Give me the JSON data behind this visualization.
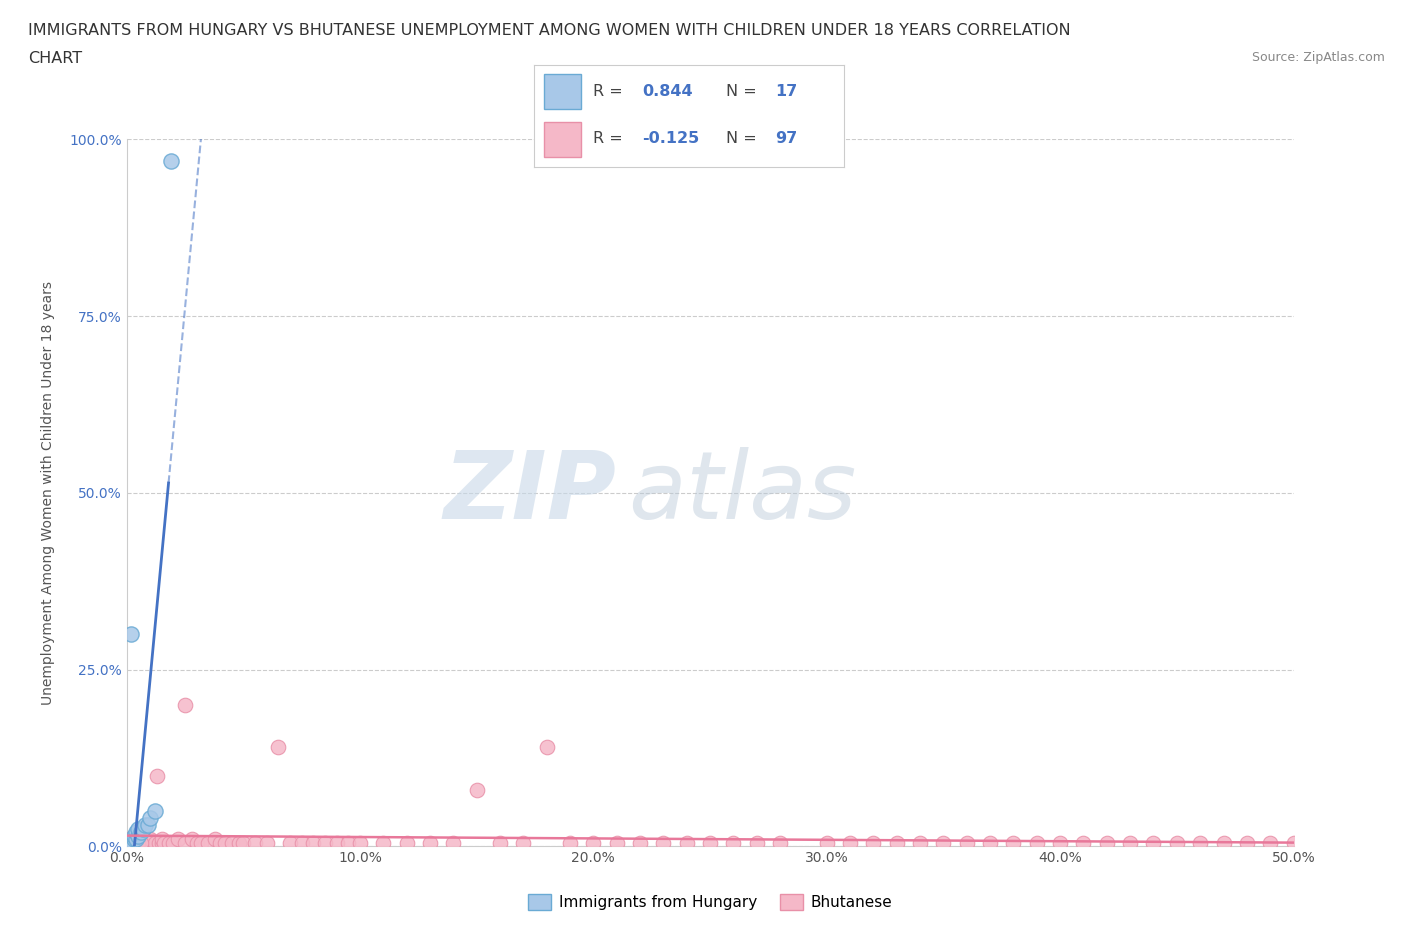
{
  "title_line1": "IMMIGRANTS FROM HUNGARY VS BHUTANESE UNEMPLOYMENT AMONG WOMEN WITH CHILDREN UNDER 18 YEARS CORRELATION",
  "title_line2": "CHART",
  "source": "Source: ZipAtlas.com",
  "ylabel": "Unemployment Among Women with Children Under 18 years",
  "xlabel": "",
  "xlim": [
    0,
    0.5
  ],
  "ylim": [
    0,
    1.0
  ],
  "xticks": [
    0.0,
    0.1,
    0.2,
    0.3,
    0.4,
    0.5
  ],
  "xtick_labels": [
    "0.0%",
    "10.0%",
    "20.0%",
    "30.0%",
    "40.0%",
    "50.0%"
  ],
  "yticks": [
    0.0,
    0.25,
    0.5,
    0.75,
    1.0
  ],
  "ytick_labels": [
    "0.0%",
    "25.0%",
    "50.0%",
    "75.0%",
    "100.0%"
  ],
  "hungary_color": "#a8c8e8",
  "hungary_edge_color": "#6aaad4",
  "bhutanese_color": "#f5b8c8",
  "bhutanese_edge_color": "#e890a8",
  "hungary_R": 0.844,
  "hungary_N": 17,
  "bhutanese_R": -0.125,
  "bhutanese_N": 97,
  "legend_hungary_label": "Immigrants from Hungary",
  "legend_bhutanese_label": "Bhutanese",
  "regression_line_hungary_color": "#4472c4",
  "regression_line_bhutanese_color": "#e8789a",
  "watermark_zip": "ZIP",
  "watermark_atlas": "atlas",
  "background_color": "#ffffff",
  "grid_color": "#cccccc",
  "hungary_x": [
    0.001,
    0.002,
    0.002,
    0.003,
    0.003,
    0.004,
    0.004,
    0.005,
    0.005,
    0.006,
    0.007,
    0.008,
    0.009,
    0.01,
    0.012,
    0.002,
    0.019
  ],
  "hungary_y": [
    0.005,
    0.005,
    0.008,
    0.01,
    0.015,
    0.01,
    0.02,
    0.015,
    0.025,
    0.02,
    0.025,
    0.03,
    0.03,
    0.04,
    0.05,
    0.3,
    0.97
  ],
  "bhutanese_x": [
    0.001,
    0.001,
    0.002,
    0.002,
    0.003,
    0.003,
    0.003,
    0.004,
    0.004,
    0.005,
    0.005,
    0.006,
    0.006,
    0.007,
    0.007,
    0.008,
    0.008,
    0.009,
    0.009,
    0.01,
    0.01,
    0.012,
    0.013,
    0.014,
    0.015,
    0.015,
    0.016,
    0.018,
    0.02,
    0.022,
    0.025,
    0.025,
    0.028,
    0.03,
    0.032,
    0.035,
    0.038,
    0.04,
    0.042,
    0.045,
    0.048,
    0.05,
    0.055,
    0.06,
    0.065,
    0.07,
    0.075,
    0.08,
    0.085,
    0.09,
    0.095,
    0.1,
    0.11,
    0.12,
    0.13,
    0.14,
    0.15,
    0.16,
    0.17,
    0.18,
    0.19,
    0.2,
    0.21,
    0.22,
    0.23,
    0.24,
    0.25,
    0.26,
    0.27,
    0.28,
    0.3,
    0.31,
    0.32,
    0.33,
    0.34,
    0.35,
    0.36,
    0.37,
    0.38,
    0.39,
    0.4,
    0.41,
    0.42,
    0.43,
    0.44,
    0.45,
    0.46,
    0.47,
    0.48,
    0.49,
    0.5,
    0.001,
    0.002,
    0.003,
    0.004,
    0.005,
    0.006
  ],
  "bhutanese_y": [
    0.005,
    0.01,
    0.005,
    0.01,
    0.005,
    0.01,
    0.015,
    0.005,
    0.01,
    0.005,
    0.01,
    0.005,
    0.01,
    0.005,
    0.01,
    0.005,
    0.01,
    0.005,
    0.01,
    0.005,
    0.01,
    0.005,
    0.1,
    0.005,
    0.005,
    0.01,
    0.005,
    0.005,
    0.005,
    0.01,
    0.005,
    0.2,
    0.01,
    0.005,
    0.005,
    0.005,
    0.01,
    0.005,
    0.005,
    0.005,
    0.005,
    0.005,
    0.005,
    0.005,
    0.14,
    0.005,
    0.005,
    0.005,
    0.005,
    0.005,
    0.005,
    0.005,
    0.005,
    0.005,
    0.005,
    0.005,
    0.08,
    0.005,
    0.005,
    0.14,
    0.005,
    0.005,
    0.005,
    0.005,
    0.005,
    0.005,
    0.005,
    0.005,
    0.005,
    0.005,
    0.005,
    0.005,
    0.005,
    0.005,
    0.005,
    0.005,
    0.005,
    0.005,
    0.005,
    0.005,
    0.005,
    0.005,
    0.005,
    0.005,
    0.005,
    0.005,
    0.005,
    0.005,
    0.005,
    0.005,
    0.005,
    0.005,
    0.005,
    0.005,
    0.005,
    0.005,
    0.005
  ]
}
